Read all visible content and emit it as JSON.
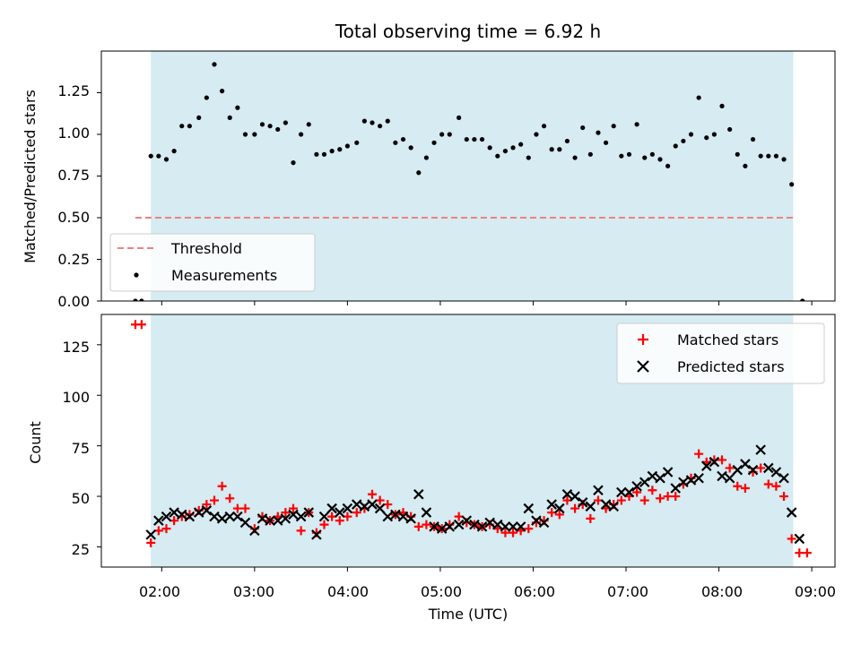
{
  "title": "Total observing time = 6.92 h",
  "xlabel": "Time (UTC)",
  "x_tick_labels": [
    "02:00",
    "03:00",
    "04:00",
    "05:00",
    "06:00",
    "07:00",
    "08:00",
    "09:00"
  ],
  "colors": {
    "span": "#add8e6",
    "threshold": "#f08080",
    "measurements": "#000000",
    "matched": "#ff0000",
    "predicted": "#000000"
  },
  "chart_data": [
    {
      "type": "scatter",
      "ylabel": "Matched/Predicted stars",
      "ylim": [
        0,
        1.5
      ],
      "xlim": [
        "01:21",
        "09:15"
      ],
      "y_tick_labels": [
        "0.00",
        "0.25",
        "0.50",
        "0.75",
        "1.00",
        "1.25"
      ],
      "observing_window": [
        "01:53",
        "08:48"
      ],
      "threshold": {
        "name": "Threshold",
        "value": 0.5,
        "x_start": "01:43",
        "x_end": "08:48"
      },
      "legend_position": "lower-left",
      "series": [
        {
          "name": "Measurements",
          "x": [
            "01:43",
            "01:47",
            "01:53",
            "01:58",
            "02:03",
            "02:08",
            "02:13",
            "02:18",
            "02:24",
            "02:29",
            "02:34",
            "02:39",
            "02:44",
            "02:49",
            "02:54",
            "03:00",
            "03:05",
            "03:10",
            "03:15",
            "03:20",
            "03:25",
            "03:30",
            "03:35",
            "03:40",
            "03:45",
            "03:50",
            "03:55",
            "04:00",
            "04:06",
            "04:11",
            "04:16",
            "04:21",
            "04:26",
            "04:31",
            "04:36",
            "04:41",
            "04:46",
            "04:51",
            "04:56",
            "05:01",
            "05:06",
            "05:12",
            "05:17",
            "05:22",
            "05:27",
            "05:32",
            "05:37",
            "05:42",
            "05:47",
            "05:52",
            "05:57",
            "06:02",
            "06:07",
            "06:12",
            "06:17",
            "06:22",
            "06:27",
            "06:32",
            "06:37",
            "06:42",
            "06:47",
            "06:52",
            "06:57",
            "07:02",
            "07:07",
            "07:12",
            "07:17",
            "07:22",
            "07:27",
            "07:32",
            "07:37",
            "07:42",
            "07:47",
            "07:52",
            "07:57",
            "08:02",
            "08:07",
            "08:12",
            "08:17",
            "08:22",
            "08:27",
            "08:32",
            "08:37",
            "08:42",
            "08:47",
            "08:54"
          ],
          "y": [
            0.0,
            0.0,
            0.87,
            0.87,
            0.85,
            0.9,
            1.05,
            1.05,
            1.1,
            1.22,
            1.42,
            1.26,
            1.1,
            1.16,
            1.0,
            1.0,
            1.06,
            1.05,
            1.03,
            1.07,
            0.83,
            1.0,
            1.06,
            0.88,
            0.88,
            0.9,
            0.91,
            0.93,
            0.95,
            1.08,
            1.07,
            1.05,
            1.08,
            0.95,
            0.97,
            0.92,
            0.77,
            0.86,
            0.95,
            1.0,
            1.0,
            1.1,
            0.97,
            0.97,
            0.97,
            0.92,
            0.87,
            0.9,
            0.92,
            0.94,
            0.86,
            1.0,
            1.05,
            0.91,
            0.91,
            0.96,
            0.86,
            1.04,
            0.88,
            1.01,
            0.95,
            1.05,
            0.87,
            0.88,
            1.06,
            0.86,
            0.88,
            0.85,
            0.81,
            0.93,
            0.96,
            1.0,
            1.22,
            0.98,
            1.0,
            1.17,
            1.03,
            0.88,
            0.81,
            0.97,
            0.87,
            0.87,
            0.87,
            0.85,
            0.7,
            0.0
          ]
        }
      ]
    },
    {
      "type": "scatter",
      "ylabel": "Count",
      "ylim": [
        15,
        140
      ],
      "xlim": [
        "01:21",
        "09:15"
      ],
      "y_tick_labels": [
        "25",
        "50",
        "75",
        "100",
        "125"
      ],
      "observing_window": [
        "01:53",
        "08:48"
      ],
      "legend_position": "top-right",
      "series": [
        {
          "name": "Matched stars",
          "x": [
            "01:43",
            "01:47",
            "01:53",
            "01:58",
            "02:03",
            "02:08",
            "02:13",
            "02:18",
            "02:24",
            "02:29",
            "02:34",
            "02:39",
            "02:44",
            "02:49",
            "02:54",
            "03:00",
            "03:05",
            "03:10",
            "03:15",
            "03:20",
            "03:25",
            "03:30",
            "03:35",
            "03:40",
            "03:45",
            "03:50",
            "03:55",
            "04:00",
            "04:06",
            "04:11",
            "04:16",
            "04:21",
            "04:26",
            "04:31",
            "04:36",
            "04:41",
            "04:46",
            "04:51",
            "04:56",
            "05:01",
            "05:06",
            "05:12",
            "05:17",
            "05:22",
            "05:27",
            "05:32",
            "05:37",
            "05:42",
            "05:47",
            "05:52",
            "05:57",
            "06:02",
            "06:07",
            "06:12",
            "06:17",
            "06:22",
            "06:27",
            "06:32",
            "06:37",
            "06:42",
            "06:47",
            "06:52",
            "06:57",
            "07:02",
            "07:07",
            "07:12",
            "07:17",
            "07:22",
            "07:27",
            "07:32",
            "07:37",
            "07:42",
            "07:47",
            "07:52",
            "07:57",
            "08:02",
            "08:07",
            "08:12",
            "08:17",
            "08:22",
            "08:27",
            "08:32",
            "08:37",
            "08:42",
            "08:47",
            "08:52",
            "08:57"
          ],
          "y": [
            135,
            135,
            27,
            33,
            34,
            38,
            40,
            41,
            43,
            46,
            48,
            55,
            49,
            44,
            44,
            34,
            40,
            38,
            40,
            42,
            44,
            33,
            42,
            32,
            36,
            40,
            38,
            40,
            42,
            44,
            51,
            48,
            46,
            41,
            42,
            40,
            35,
            36,
            35,
            34,
            36,
            40,
            37,
            36,
            35,
            36,
            34,
            32,
            32,
            33,
            34,
            37,
            38,
            42,
            41,
            48,
            44,
            46,
            39,
            48,
            44,
            46,
            48,
            50,
            52,
            48,
            53,
            49,
            50,
            50,
            56,
            59,
            71,
            67,
            68,
            68,
            64,
            55,
            54,
            62,
            64,
            56,
            55,
            50,
            29,
            22,
            22
          ]
        },
        {
          "name": "Predicted stars",
          "x": [
            "01:53",
            "01:58",
            "02:03",
            "02:08",
            "02:13",
            "02:18",
            "02:24",
            "02:29",
            "02:34",
            "02:39",
            "02:44",
            "02:49",
            "02:54",
            "03:00",
            "03:05",
            "03:10",
            "03:15",
            "03:20",
            "03:25",
            "03:30",
            "03:35",
            "03:40",
            "03:45",
            "03:50",
            "03:55",
            "04:00",
            "04:06",
            "04:11",
            "04:16",
            "04:21",
            "04:26",
            "04:31",
            "04:36",
            "04:41",
            "04:46",
            "04:51",
            "04:56",
            "05:01",
            "05:06",
            "05:12",
            "05:17",
            "05:22",
            "05:27",
            "05:32",
            "05:37",
            "05:42",
            "05:47",
            "05:52",
            "05:57",
            "06:02",
            "06:07",
            "06:12",
            "06:17",
            "06:22",
            "06:27",
            "06:32",
            "06:37",
            "06:42",
            "06:47",
            "06:52",
            "06:57",
            "07:02",
            "07:07",
            "07:12",
            "07:17",
            "07:22",
            "07:27",
            "07:32",
            "07:37",
            "07:42",
            "07:47",
            "07:52",
            "07:57",
            "08:02",
            "08:07",
            "08:12",
            "08:17",
            "08:22",
            "08:27",
            "08:32",
            "08:37",
            "08:42",
            "08:47",
            "08:52"
          ],
          "y": [
            31,
            38,
            40,
            42,
            41,
            40,
            42,
            43,
            40,
            39,
            40,
            40,
            37,
            33,
            39,
            38,
            38,
            39,
            41,
            40,
            42,
            31,
            40,
            44,
            42,
            44,
            46,
            45,
            46,
            44,
            40,
            41,
            40,
            39,
            51,
            42,
            35,
            34,
            35,
            36,
            38,
            36,
            35,
            37,
            36,
            35,
            35,
            35,
            44,
            38,
            37,
            46,
            44,
            51,
            50,
            47,
            45,
            53,
            46,
            45,
            52,
            52,
            55,
            57,
            60,
            59,
            62,
            54,
            57,
            58,
            59,
            65,
            67,
            60,
            59,
            63,
            66,
            63,
            73,
            64,
            62,
            59,
            42,
            29
          ]
        }
      ]
    }
  ]
}
